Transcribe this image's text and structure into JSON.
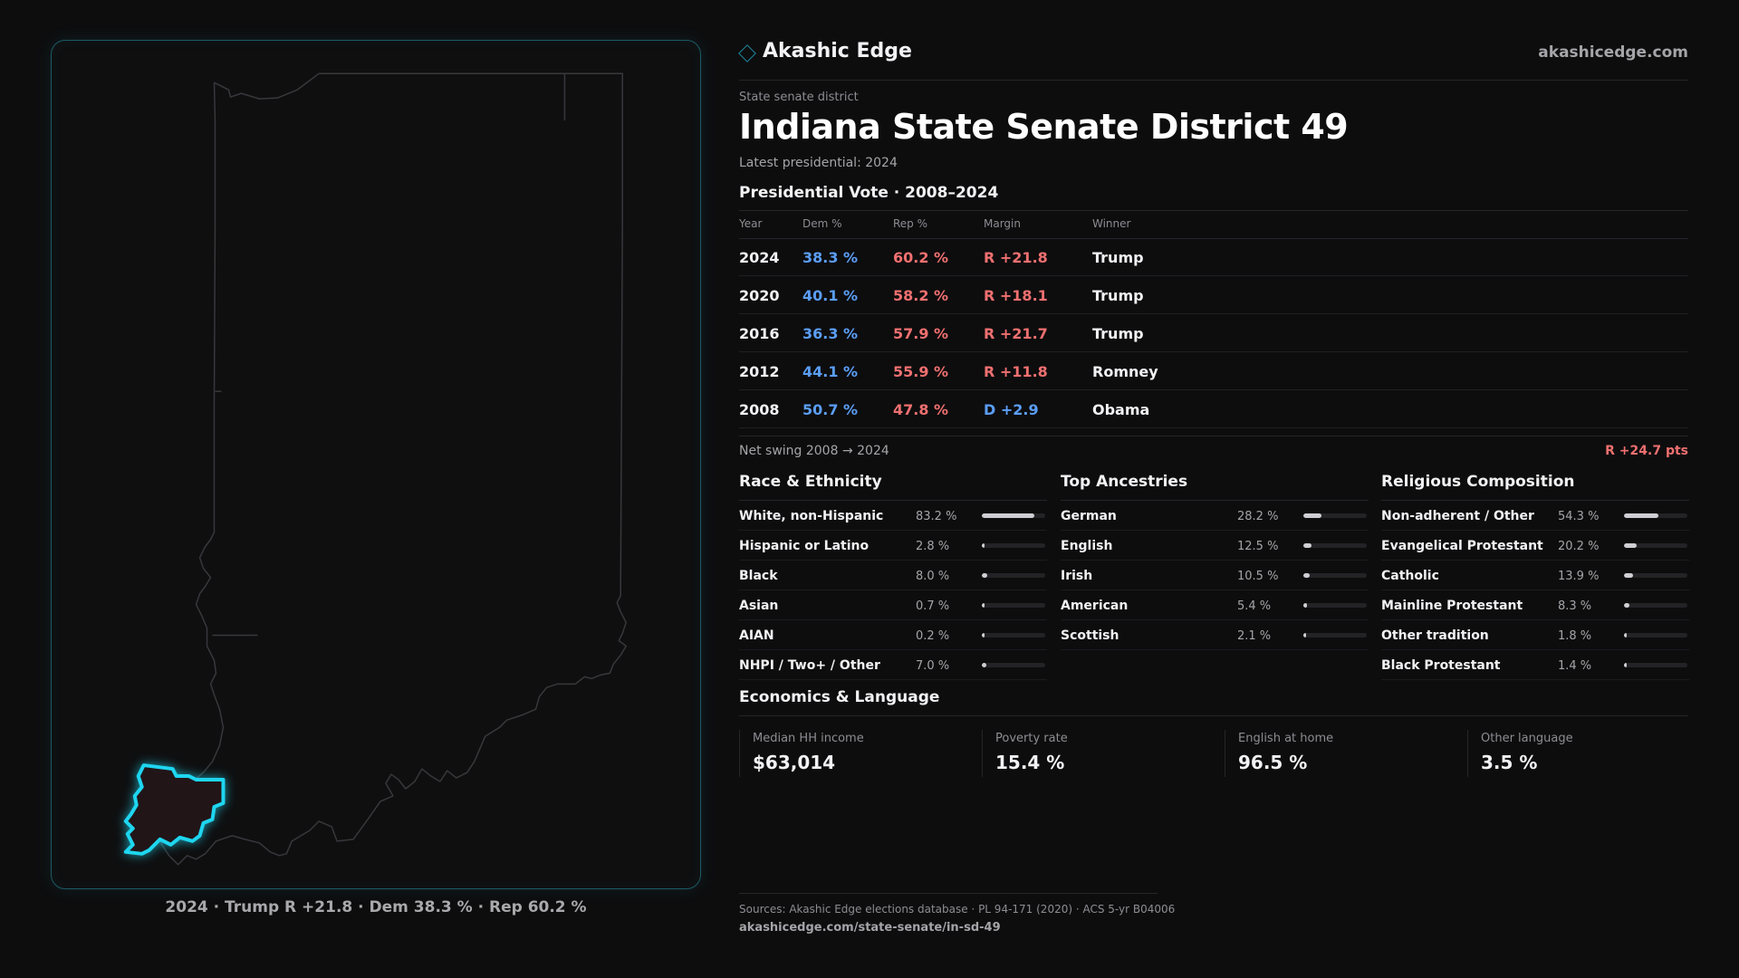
{
  "brand": {
    "name": "Akashic Edge",
    "url": "akashicedge.com"
  },
  "district": {
    "type_label": "State senate district",
    "title": "Indiana State Senate District 49",
    "latest": "Latest presidential: 2024"
  },
  "map": {
    "caption": "2024 · Trump R +21.8 · Dem 38.3 % · Rep 60.2 %",
    "highlight_color": "#1ed6f0",
    "outline_color": "#3a3a3e"
  },
  "presidential": {
    "section_title": "Presidential Vote · 2008–2024",
    "headers": {
      "year": "Year",
      "dem": "Dem %",
      "rep": "Rep %",
      "margin": "Margin",
      "winner": "Winner"
    },
    "rows": [
      {
        "year": "2024",
        "dem": "38.3 %",
        "rep": "60.2 %",
        "margin": "R +21.8",
        "party": "R",
        "winner": "Trump"
      },
      {
        "year": "2020",
        "dem": "40.1 %",
        "rep": "58.2 %",
        "margin": "R +18.1",
        "party": "R",
        "winner": "Trump"
      },
      {
        "year": "2016",
        "dem": "36.3 %",
        "rep": "57.9 %",
        "margin": "R +21.7",
        "party": "R",
        "winner": "Trump"
      },
      {
        "year": "2012",
        "dem": "44.1 %",
        "rep": "55.9 %",
        "margin": "R +11.8",
        "party": "R",
        "winner": "Romney"
      },
      {
        "year": "2008",
        "dem": "50.7 %",
        "rep": "47.8 %",
        "margin": "D +2.9",
        "party": "D",
        "winner": "Obama"
      }
    ],
    "swing_label": "Net swing 2008 → 2024",
    "swing_value": "R +24.7 pts"
  },
  "race": {
    "title": "Race & Ethnicity",
    "items": [
      {
        "label": "White, non-Hispanic",
        "pct": "83.2 %",
        "value": 83.2
      },
      {
        "label": "Hispanic or Latino",
        "pct": "2.8 %",
        "value": 2.8
      },
      {
        "label": "Black",
        "pct": "8.0 %",
        "value": 8.0
      },
      {
        "label": "Asian",
        "pct": "0.7 %",
        "value": 0.7
      },
      {
        "label": "AIAN",
        "pct": "0.2 %",
        "value": 0.2
      },
      {
        "label": "NHPI / Two+ / Other",
        "pct": "7.0 %",
        "value": 7.0
      }
    ]
  },
  "ancestry": {
    "title": "Top Ancestries",
    "items": [
      {
        "label": "German",
        "pct": "28.2 %",
        "value": 28.2
      },
      {
        "label": "English",
        "pct": "12.5 %",
        "value": 12.5
      },
      {
        "label": "Irish",
        "pct": "10.5 %",
        "value": 10.5
      },
      {
        "label": "American",
        "pct": "5.4 %",
        "value": 5.4
      },
      {
        "label": "Scottish",
        "pct": "2.1 %",
        "value": 2.1
      }
    ]
  },
  "religion": {
    "title": "Religious Composition",
    "items": [
      {
        "label": "Non-adherent / Other",
        "pct": "54.3 %",
        "value": 54.3
      },
      {
        "label": "Evangelical Protestant",
        "pct": "20.2 %",
        "value": 20.2
      },
      {
        "label": "Catholic",
        "pct": "13.9 %",
        "value": 13.9
      },
      {
        "label": "Mainline Protestant",
        "pct": "8.3 %",
        "value": 8.3
      },
      {
        "label": "Other tradition",
        "pct": "1.8 %",
        "value": 1.8
      },
      {
        "label": "Black Protestant",
        "pct": "1.4 %",
        "value": 1.4
      }
    ]
  },
  "economics": {
    "title": "Economics & Language",
    "cards": [
      {
        "key": "Median HH income",
        "value": "$63,014"
      },
      {
        "key": "Poverty rate",
        "value": "15.4 %"
      },
      {
        "key": "English at home",
        "value": "96.5 %"
      },
      {
        "key": "Other language",
        "value": "3.5 %"
      }
    ]
  },
  "footer": {
    "sources": "Sources: Akashic Edge elections database · PL 94-171 (2020) · ACS 5-yr B04006",
    "url": "akashicedge.com/state-senate/in-sd-49"
  },
  "colors": {
    "dem": "#5b9ef5",
    "rep": "#f07070",
    "accent": "#1ed6f0"
  }
}
